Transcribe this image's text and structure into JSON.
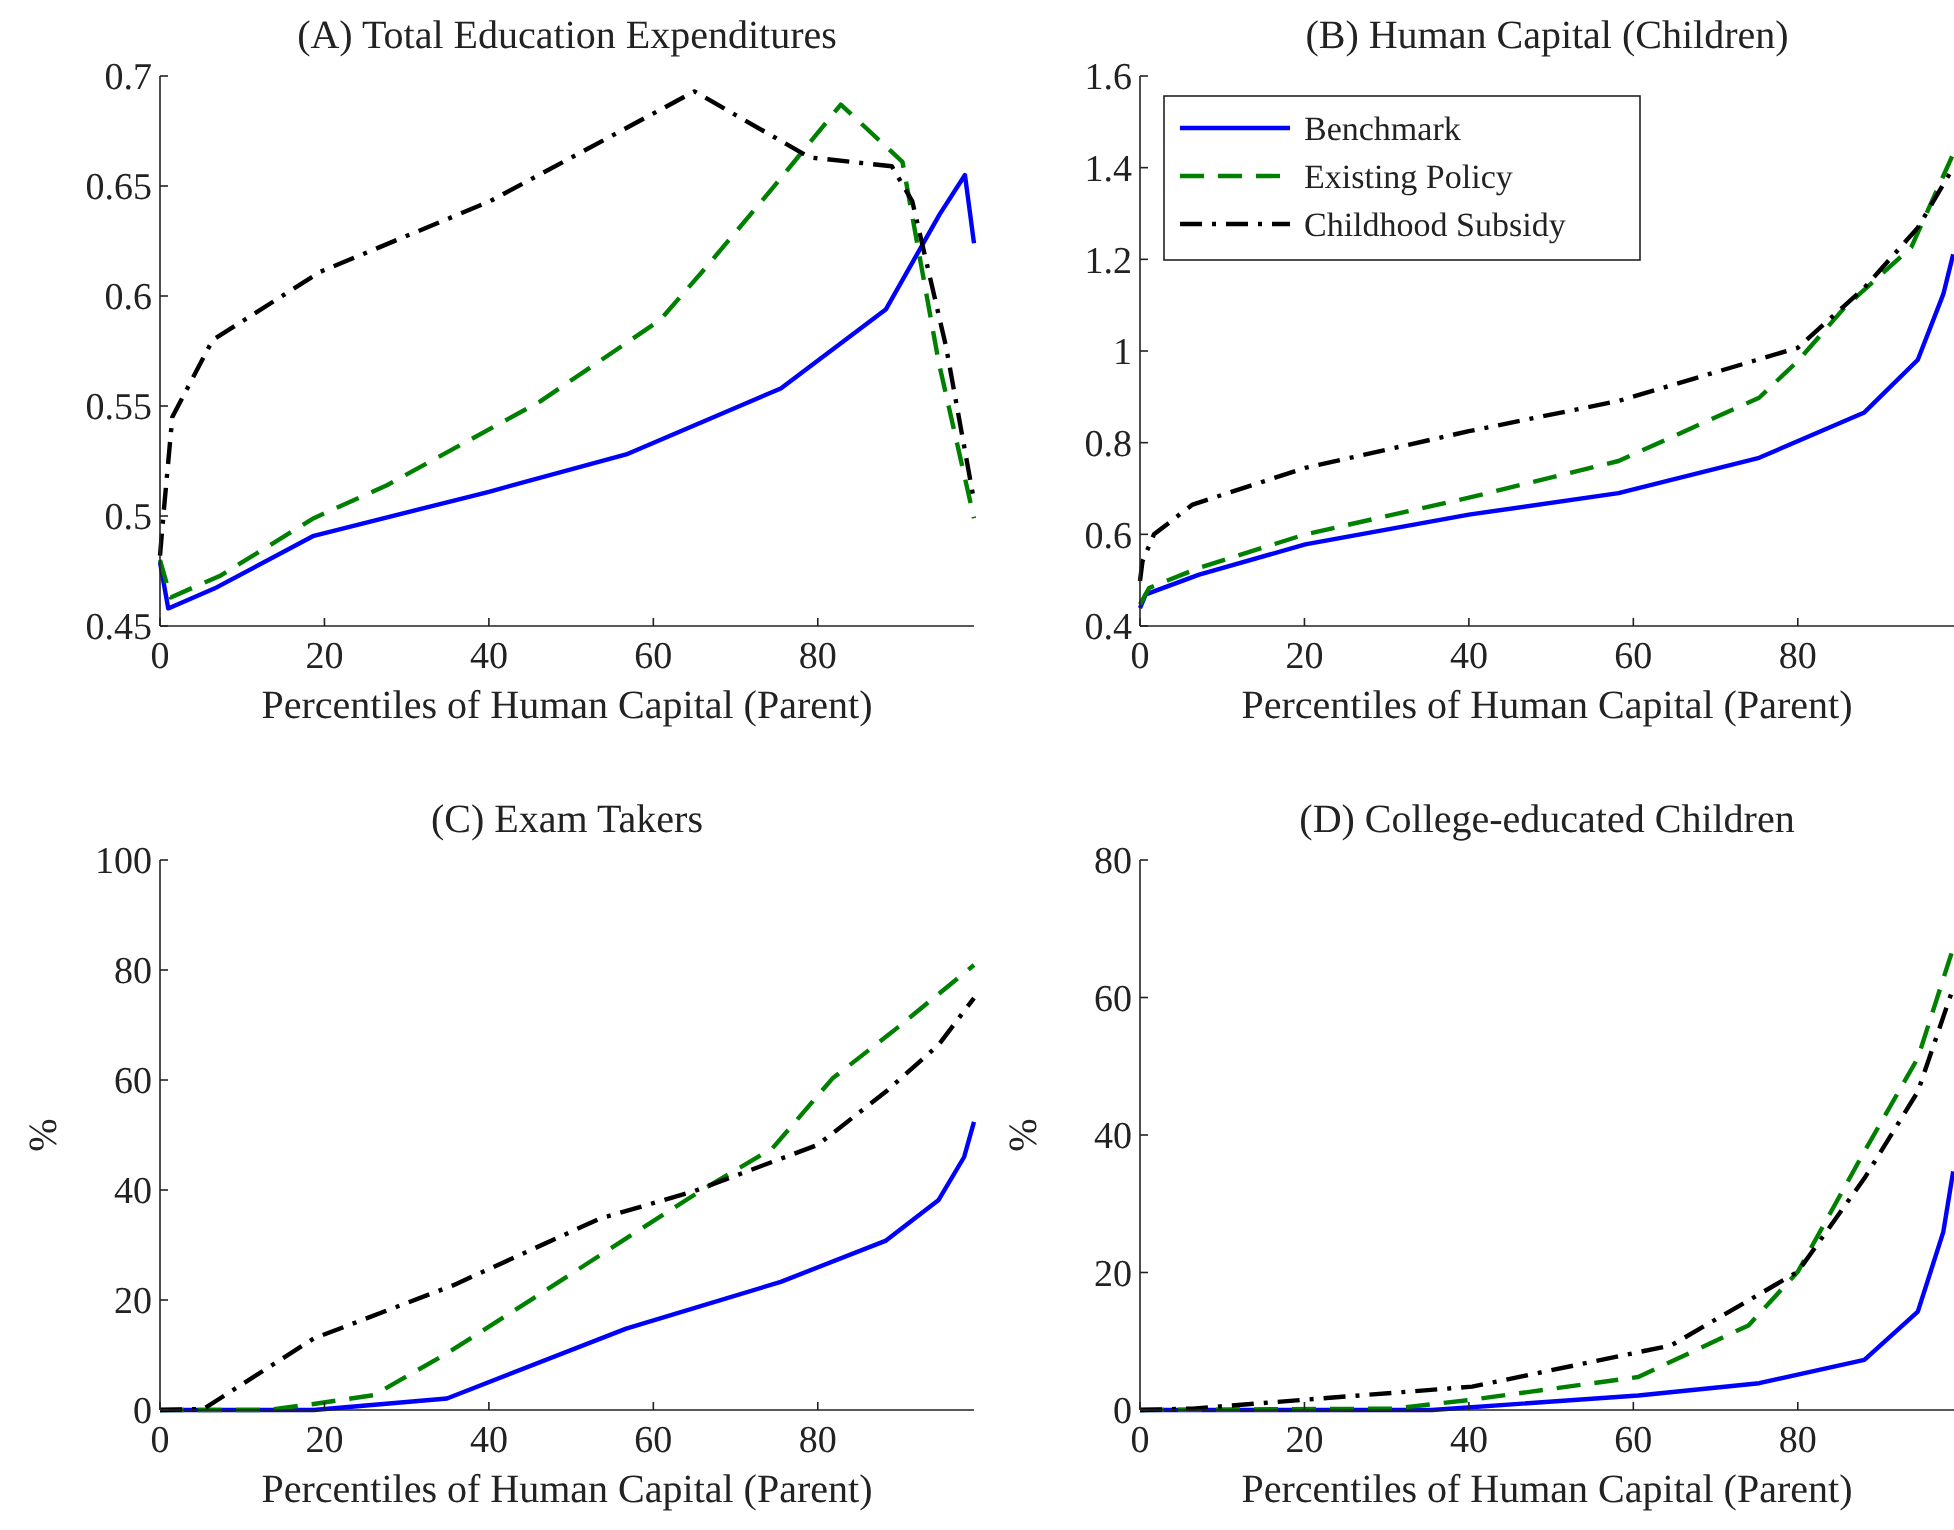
{
  "chart_data": [
    {
      "type": "line",
      "title": "(A) Total Education Expenditures",
      "xlabel": "Percentiles of Human Capital (Parent)",
      "xlim": [
        0,
        99
      ],
      "xticks": [
        0,
        20,
        40,
        60,
        80
      ],
      "ylim": [
        0.45,
        0.7
      ],
      "yticks": [
        0.45,
        0.5,
        0.55,
        0.6,
        0.65,
        0.7
      ],
      "legend": false,
      "grid": false,
      "marker": "none",
      "series": [
        {
          "color": "#0000ff",
          "line_style": "solid",
          "x": [
            0,
            1,
            6.6,
            18.7,
            40,
            56.7,
            75.5,
            88.3,
            94.8,
            97.9,
            99
          ],
          "values": [
            0.479,
            0.458,
            0.467,
            0.491,
            0.511,
            0.528,
            0.558,
            0.594,
            0.637,
            0.655,
            0.624
          ]
        },
        {
          "color": "#008000",
          "line_style": "dashed",
          "x": [
            0,
            1.3,
            7.4,
            18.7,
            27.6,
            46.2,
            60.8,
            66.4,
            74.5,
            82.8,
            90.3,
            94.7,
            99
          ],
          "values": [
            0.48,
            0.463,
            0.473,
            0.499,
            0.514,
            0.552,
            0.589,
            0.613,
            0.649,
            0.687,
            0.661,
            0.57,
            0.499
          ]
        },
        {
          "color": "#000000",
          "line_style": "dashdot",
          "x": [
            0,
            0.5,
            1.5,
            6.4,
            19.5,
            40.1,
            65,
            79,
            89,
            91.5,
            95.6,
            99
          ],
          "values": [
            0.482,
            0.504,
            0.545,
            0.58,
            0.611,
            0.643,
            0.693,
            0.663,
            0.659,
            0.643,
            0.577,
            0.507
          ]
        }
      ]
    },
    {
      "type": "line",
      "title": "(B) Human Capital (Children)",
      "xlabel": "Percentiles of Human Capital (Parent)",
      "xlim": [
        0,
        99
      ],
      "xticks": [
        0,
        20,
        40,
        60,
        80
      ],
      "ylim": [
        0.4,
        1.6
      ],
      "yticks": [
        0.4,
        0.6,
        0.8,
        1,
        1.2,
        1.4,
        1.6
      ],
      "legend": "top left",
      "grid": false,
      "marker": "none",
      "series": [
        {
          "name": "Benchmark",
          "color": "#0000ff",
          "line_style": "solid",
          "x": [
            0,
            0.7,
            7.2,
            20.1,
            40,
            58.2,
            75.3,
            88.1,
            94.6,
            97.7,
            98.9
          ],
          "values": [
            0.439,
            0.469,
            0.512,
            0.578,
            0.643,
            0.69,
            0.767,
            0.866,
            0.981,
            1.124,
            1.211
          ]
        },
        {
          "name": "Existing Policy",
          "color": "#008000",
          "line_style": "dashed",
          "x": [
            0,
            1.1,
            7.2,
            20.1,
            40,
            58.2,
            75.3,
            80,
            85.7,
            93.8,
            98.9
          ],
          "values": [
            0.447,
            0.483,
            0.527,
            0.6,
            0.68,
            0.76,
            0.898,
            0.978,
            1.095,
            1.226,
            1.43
          ]
        },
        {
          "name": "Childhood Subsidy",
          "color": "#000000",
          "line_style": "dashdot",
          "x": [
            0,
            0.3,
            1.7,
            6.4,
            20.1,
            40,
            58.2,
            80,
            88.1,
            94.6,
            98.9
          ],
          "values": [
            0.498,
            0.541,
            0.6,
            0.665,
            0.745,
            0.825,
            0.891,
            1.007,
            1.138,
            1.269,
            1.4
          ]
        }
      ]
    },
    {
      "type": "line",
      "title": "(C) Exam Takers",
      "xlabel": "Percentiles of Human Capital (Parent)",
      "ylabel": "%",
      "xlim": [
        0,
        99
      ],
      "xticks": [
        0,
        20,
        40,
        60,
        80
      ],
      "ylim": [
        0,
        100
      ],
      "yticks": [
        0,
        20,
        40,
        60,
        80,
        100
      ],
      "legend": false,
      "grid": false,
      "marker": "none",
      "series": [
        {
          "color": "#0000ff",
          "line_style": "solid",
          "x": [
            0,
            18.7,
            34.9,
            56.7,
            75.5,
            88.3,
            94.7,
            97.8,
            99
          ],
          "values": [
            0,
            0,
            2.1,
            14.8,
            23.3,
            30.8,
            38.2,
            46,
            52.4
          ]
        },
        {
          "color": "#008000",
          "line_style": "dashed",
          "x": [
            0,
            13,
            18.7,
            26,
            34.9,
            45.4,
            56.7,
            65.6,
            74.5,
            81.8,
            89.1,
            99
          ],
          "values": [
            0,
            0,
            1.1,
            2.7,
            10.3,
            20.3,
            31.2,
            39.7,
            47.6,
            60.3,
            68.8,
            80.9
          ]
        },
        {
          "color": "#000000",
          "line_style": "dashdot",
          "x": [
            0,
            5.3,
            18.7,
            35.7,
            53.5,
            64.8,
            80,
            88.3,
            94.7,
            99
          ],
          "values": [
            0,
            0.2,
            13,
            22.7,
            34.8,
            39.7,
            48.2,
            57.9,
            66.4,
            74.9
          ]
        }
      ]
    },
    {
      "type": "line",
      "title": "(D) College-educated Children",
      "xlabel": "Percentiles of Human Capital (Parent)",
      "ylabel": "%",
      "xlim": [
        0,
        99
      ],
      "xticks": [
        0,
        20,
        40,
        60,
        80
      ],
      "ylim": [
        0,
        80
      ],
      "yticks": [
        0,
        20,
        40,
        60,
        80
      ],
      "legend": false,
      "grid": false,
      "marker": "none",
      "series": [
        {
          "color": "#0000ff",
          "line_style": "solid",
          "x": [
            0,
            35.5,
            60.6,
            75.3,
            88.1,
            94.6,
            97.7,
            98.9
          ],
          "values": [
            0,
            0,
            2.1,
            3.9,
            7.3,
            14.3,
            25.9,
            34.7
          ]
        },
        {
          "color": "#008000",
          "line_style": "dashed",
          "x": [
            0,
            30.7,
            40.4,
            60.6,
            74,
            80,
            88.1,
            94.6,
            98.9
          ],
          "values": [
            0,
            0.2,
            1.5,
            4.8,
            12.3,
            20.1,
            37.6,
            51.2,
            67.2
          ]
        },
        {
          "color": "#000000",
          "line_style": "dashdot",
          "x": [
            0,
            6.4,
            20.1,
            40.4,
            64.6,
            80,
            88.1,
            94.6,
            98.9
          ],
          "values": [
            0,
            0.2,
            1.5,
            3.4,
            9.4,
            20.1,
            33.7,
            46.3,
            61.4
          ]
        }
      ]
    }
  ]
}
